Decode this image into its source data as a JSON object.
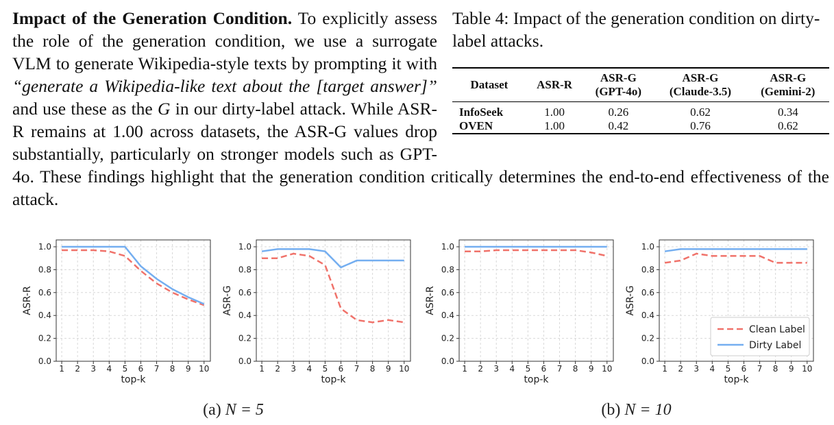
{
  "paragraph": {
    "heading": "Impact of the Generation Condition.",
    "spans": [
      {
        "text": " To explicitly assess the role of the generation condition, we use a surrogate VLM to generate Wikipedia-style texts by prompting it with "
      },
      {
        "text": "“generate a Wikipedia-like text about the [target answer]”",
        "italic": true
      },
      {
        "text": " and use these as the "
      },
      {
        "text": "G",
        "italic": true
      },
      {
        "text": " in our dirty-label attack. While ASR-R remains at 1.00 across datasets, the ASR-G values drop substantially, particularly on stronger models such as GPT-4o. These findings highlight that the generation condition critically determines the end-to-end effectiveness of the attack."
      }
    ]
  },
  "table": {
    "caption": "Table 4: Impact of the generation condition on dirty-label attacks.",
    "header": [
      [
        "Dataset"
      ],
      [
        "ASR-R"
      ],
      [
        "ASR-G",
        "(GPT-4o)"
      ],
      [
        "ASR-G",
        "(Claude-3.5)"
      ],
      [
        "ASR-G",
        "(Gemini-2)"
      ]
    ],
    "rows": [
      [
        "InfoSeek",
        "1.00",
        "0.26",
        "0.62",
        "0.34"
      ],
      [
        "OVEN",
        "1.00",
        "0.42",
        "0.76",
        "0.62"
      ]
    ]
  },
  "chart_data": [
    {
      "type": "line",
      "xlabel": "top-k",
      "ylabel": "ASR-R",
      "x": [
        1,
        2,
        3,
        4,
        5,
        6,
        7,
        8,
        9,
        10
      ],
      "xlim": [
        0.65,
        10.4
      ],
      "ylim": [
        0,
        1.06
      ],
      "xticks": [
        1,
        2,
        3,
        4,
        5,
        6,
        7,
        8,
        9,
        10
      ],
      "yticks": [
        {
          "value": 0,
          "label": "0.0"
        },
        0.2,
        0.4,
        0.6,
        0.8,
        {
          "value": 1,
          "label": "1.0"
        }
      ],
      "grid": true,
      "legend": false,
      "series": [
        {
          "color": "#f0726a",
          "dash": true,
          "values": [
            0.97,
            0.97,
            0.97,
            0.96,
            0.92,
            0.79,
            0.68,
            0.6,
            0.54,
            0.49
          ]
        },
        {
          "color": "#74aef0",
          "dash": false,
          "values": [
            1.0,
            1.0,
            1.0,
            1.0,
            1.0,
            0.83,
            0.72,
            0.63,
            0.56,
            0.5
          ]
        }
      ]
    },
    {
      "type": "line",
      "xlabel": "top-k",
      "ylabel": "ASR-G",
      "x": [
        1,
        2,
        3,
        4,
        5,
        6,
        7,
        8,
        9,
        10
      ],
      "xlim": [
        0.65,
        10.4
      ],
      "ylim": [
        0,
        1.06
      ],
      "xticks": [
        1,
        2,
        3,
        4,
        5,
        6,
        7,
        8,
        9,
        10
      ],
      "yticks": [
        {
          "value": 0,
          "label": "0.0"
        },
        0.2,
        0.4,
        0.6,
        0.8,
        {
          "value": 1,
          "label": "1.0"
        }
      ],
      "grid": true,
      "legend": false,
      "series": [
        {
          "color": "#f0726a",
          "dash": true,
          "values": [
            0.9,
            0.9,
            0.94,
            0.92,
            0.84,
            0.46,
            0.36,
            0.34,
            0.36,
            0.34
          ]
        },
        {
          "color": "#74aef0",
          "dash": false,
          "values": [
            0.96,
            0.98,
            0.98,
            0.98,
            0.96,
            0.82,
            0.88,
            0.88,
            0.88,
            0.88
          ]
        }
      ]
    },
    {
      "type": "line",
      "xlabel": "top-k",
      "ylabel": "ASR-R",
      "x": [
        1,
        2,
        3,
        4,
        5,
        6,
        7,
        8,
        9,
        10
      ],
      "xlim": [
        0.65,
        10.4
      ],
      "ylim": [
        0,
        1.06
      ],
      "xticks": [
        1,
        2,
        3,
        4,
        5,
        6,
        7,
        8,
        9,
        10
      ],
      "yticks": [
        {
          "value": 0,
          "label": "0.0"
        },
        0.2,
        0.4,
        0.6,
        0.8,
        {
          "value": 1,
          "label": "1.0"
        }
      ],
      "grid": true,
      "legend": false,
      "series": [
        {
          "color": "#f0726a",
          "dash": true,
          "values": [
            0.96,
            0.96,
            0.97,
            0.97,
            0.97,
            0.97,
            0.97,
            0.97,
            0.95,
            0.92
          ]
        },
        {
          "color": "#74aef0",
          "dash": false,
          "values": [
            1.0,
            1.0,
            1.0,
            1.0,
            1.0,
            1.0,
            1.0,
            1.0,
            1.0,
            1.0
          ]
        }
      ]
    },
    {
      "type": "line",
      "xlabel": "top-k",
      "ylabel": "ASR-G",
      "x": [
        1,
        2,
        3,
        4,
        5,
        6,
        7,
        8,
        9,
        10
      ],
      "xlim": [
        0.65,
        10.4
      ],
      "ylim": [
        0,
        1.06
      ],
      "xticks": [
        1,
        2,
        3,
        4,
        5,
        6,
        7,
        8,
        9,
        10
      ],
      "yticks": [
        {
          "value": 0,
          "label": "0.0"
        },
        0.2,
        0.4,
        0.6,
        0.8,
        {
          "value": 1,
          "label": "1.0"
        }
      ],
      "grid": true,
      "legend": "lower right",
      "series": [
        {
          "name": "Clean Label",
          "color": "#f0726a",
          "dash": true,
          "values": [
            0.86,
            0.88,
            0.94,
            0.92,
            0.92,
            0.92,
            0.92,
            0.86,
            0.86,
            0.86
          ]
        },
        {
          "name": "Dirty Label",
          "color": "#74aef0",
          "dash": false,
          "values": [
            0.96,
            0.98,
            0.98,
            0.98,
            0.98,
            0.98,
            0.98,
            0.98,
            0.98,
            0.98
          ]
        }
      ]
    }
  ],
  "captions": [
    {
      "label": "(a)",
      "math": "N = 5"
    },
    {
      "label": "(b)",
      "math": "N = 10"
    }
  ]
}
